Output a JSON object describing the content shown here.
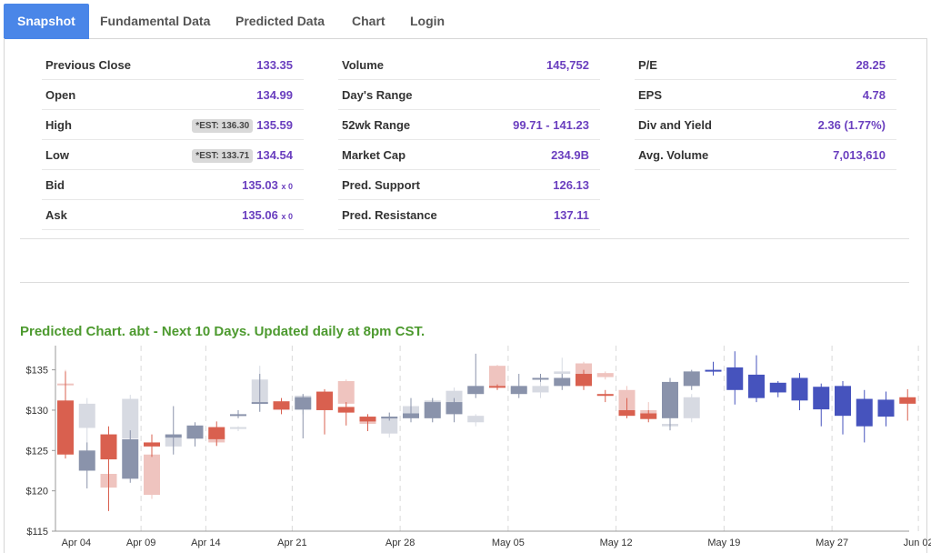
{
  "tabs": [
    {
      "label": "Snapshot",
      "active": true
    },
    {
      "label": "Fundamental Data",
      "active": false
    },
    {
      "label": "Predicted Data",
      "active": false
    },
    {
      "label": "Chart",
      "active": false
    },
    {
      "label": "Login",
      "active": false
    }
  ],
  "quote": {
    "col1": [
      {
        "label": "Previous Close",
        "value": "133.35"
      },
      {
        "label": "Open",
        "value": "134.99"
      },
      {
        "label": "High",
        "value": "135.59",
        "est": "*EST: 136.30"
      },
      {
        "label": "Low",
        "value": "134.54",
        "est": "*EST: 133.71"
      },
      {
        "label": "Bid",
        "value": "135.03",
        "size": "x 0"
      },
      {
        "label": "Ask",
        "value": "135.06",
        "size": "x 0"
      }
    ],
    "col2": [
      {
        "label": "Volume",
        "value": "145,752"
      },
      {
        "label": "Day's Range",
        "value": ""
      },
      {
        "label": "52wk Range",
        "value": "99.71 - 141.23"
      },
      {
        "label": "Market Cap",
        "value": "234.9B"
      },
      {
        "label": "Pred. Support",
        "value": "126.13"
      },
      {
        "label": "Pred. Resistance",
        "value": "137.11"
      }
    ],
    "col3": [
      {
        "label": "P/E",
        "value": "28.25"
      },
      {
        "label": "EPS",
        "value": "4.78"
      },
      {
        "label": "Div and Yield",
        "value": "2.36 (1.77%)"
      },
      {
        "label": "Avg. Volume",
        "value": "7,013,610"
      }
    ]
  },
  "chart_title": "Predicted Chart. abt - Next 10 Days. Updated daily at 8pm CST.",
  "colors": {
    "down": "#d9604f",
    "down_light": "#efc4bf",
    "up": "#8a93ab",
    "up_light": "#d7dae2",
    "predicted": "#4653bd"
  },
  "chart_data": {
    "type": "candlestick",
    "title": "Predicted Chart. abt - Next 10 Days. Updated daily at 8pm CST.",
    "ylim": [
      115,
      138
    ],
    "yticks": [
      {
        "value": 115,
        "label": "$115"
      },
      {
        "value": 120,
        "label": "$120"
      },
      {
        "value": 125,
        "label": "$125"
      },
      {
        "value": 130,
        "label": "$130"
      },
      {
        "value": 135,
        "label": "$135"
      }
    ],
    "xticks": [
      {
        "index": 0.5,
        "label": "Apr 04"
      },
      {
        "index": 3.5,
        "label": "Apr 09"
      },
      {
        "index": 6.5,
        "label": "Apr 14"
      },
      {
        "index": 10.5,
        "label": "Apr 21"
      },
      {
        "index": 15.5,
        "label": "Apr 28"
      },
      {
        "index": 20.5,
        "label": "May 05"
      },
      {
        "index": 25.5,
        "label": "May 12"
      },
      {
        "index": 30.5,
        "label": "May 19"
      },
      {
        "index": 35.5,
        "label": "May 27"
      },
      {
        "index": 39.5,
        "label": "Jun 02"
      }
    ],
    "grid_x_at": [
      3.5,
      6.5,
      10.5,
      15.5,
      20.5,
      25.5,
      30.5,
      35.5,
      39.5
    ],
    "historical": [
      {
        "i": 0,
        "o": 131.2,
        "c": 124.5,
        "h": 134.8,
        "l": 124,
        "dir": "down",
        "shadow": {
          "o": 133.3,
          "c": 133.3,
          "h": 135.0,
          "l": 131.0
        }
      },
      {
        "i": 1,
        "o": 122.5,
        "c": 125.0,
        "h": 126,
        "l": 120.3,
        "dir": "up",
        "shadow": {
          "o": 130.8,
          "c": 127.8,
          "h": 131.5,
          "l": 125.0
        }
      },
      {
        "i": 2,
        "o": 127.0,
        "c": 123.9,
        "h": 128,
        "l": 117.5,
        "dir": "down",
        "shadow": {
          "o": 122.1,
          "c": 120.4,
          "h": 124.0,
          "l": 119.8
        }
      },
      {
        "i": 3,
        "o": 121.5,
        "c": 126.4,
        "h": 127.5,
        "l": 121,
        "dir": "up",
        "shadow": {
          "o": 131.4,
          "c": 126.5,
          "h": 131.9,
          "l": 125.8
        }
      },
      {
        "i": 4,
        "o": 126.0,
        "c": 125.5,
        "h": 127,
        "l": 124.2,
        "dir": "down",
        "shadow": {
          "o": 124.5,
          "c": 119.5,
          "h": 125.5,
          "l": 119.0
        }
      },
      {
        "i": 5,
        "o": 126.6,
        "c": 127.0,
        "h": 130.5,
        "l": 124.5,
        "dir": "up",
        "shadow": {
          "o": 126.8,
          "c": 125.5,
          "h": 127.5,
          "l": 125.0
        }
      },
      {
        "i": 6,
        "o": 126.5,
        "c": 128.1,
        "h": 128.5,
        "l": 125.5,
        "dir": "up",
        "shadow": {
          "o": 126.8,
          "c": 126.4,
          "h": 127.0,
          "l": 126.0
        }
      },
      {
        "i": 7,
        "o": 127.9,
        "c": 126.4,
        "h": 128.6,
        "l": 125.6,
        "dir": "down",
        "shadow": {
          "o": 127.0,
          "c": 126.0,
          "h": 127.5,
          "l": 125.5
        }
      },
      {
        "i": 8,
        "o": 129.4,
        "c": 129.5,
        "h": 130.0,
        "l": 129.0,
        "dir": "up",
        "shadow": {
          "o": 127.9,
          "c": 127.7,
          "h": 128.0,
          "l": 127.4
        }
      },
      {
        "i": 9,
        "o": 130.8,
        "c": 131.0,
        "h": 134.5,
        "l": 129.8,
        "dir": "up",
        "shadow": {
          "o": 133.8,
          "c": 130.8,
          "h": 135.5,
          "l": 129.8
        }
      },
      {
        "i": 10,
        "o": 131.1,
        "c": 130.1,
        "h": 131.5,
        "l": 129.5,
        "dir": "down",
        "shadow": {
          "o": 130.5,
          "c": 130.0,
          "h": 131.0,
          "l": 129.5
        }
      },
      {
        "i": 11,
        "o": 130.1,
        "c": 131.6,
        "h": 132.0,
        "l": 126.5,
        "dir": "up",
        "shadow": {
          "o": 131.8,
          "c": 130.0,
          "h": 132.0,
          "l": 129.5
        }
      },
      {
        "i": 12,
        "o": 132.3,
        "c": 130.0,
        "h": 132.6,
        "l": 127.0,
        "dir": "down",
        "shadow": {
          "o": 131.8,
          "c": 130.5,
          "h": 132.5,
          "l": 129.5
        }
      },
      {
        "i": 13,
        "o": 130.4,
        "c": 129.7,
        "h": 131.0,
        "l": 128.1,
        "dir": "down",
        "shadow": {
          "o": 133.6,
          "c": 130.8,
          "h": 133.8,
          "l": 130.5
        }
      },
      {
        "i": 14,
        "o": 129.2,
        "c": 128.6,
        "h": 129.5,
        "l": 127.4,
        "dir": "down",
        "shadow": {
          "o": 129.0,
          "c": 128.3,
          "h": 129.5,
          "l": 127.8
        }
      },
      {
        "i": 15,
        "o": 129.0,
        "c": 129.2,
        "h": 129.7,
        "l": 128.7,
        "dir": "up",
        "shadow": {
          "o": 129.2,
          "c": 127.1,
          "h": 129.7,
          "l": 126.6
        }
      },
      {
        "i": 16,
        "o": 129.0,
        "c": 129.6,
        "h": 131.5,
        "l": 128.5,
        "dir": "up",
        "shadow": {
          "o": 130.5,
          "c": 129.0,
          "h": 131.2,
          "l": 128.5
        }
      },
      {
        "i": 17,
        "o": 129.0,
        "c": 131.0,
        "h": 131.5,
        "l": 128.5,
        "dir": "up",
        "shadow": {
          "o": 131.2,
          "c": 129.0,
          "h": 131.5,
          "l": 128.5
        }
      },
      {
        "i": 18,
        "o": 129.5,
        "c": 131.0,
        "h": 131.5,
        "l": 128.5,
        "dir": "up",
        "shadow": {
          "o": 132.4,
          "c": 130.6,
          "h": 132.8,
          "l": 130.0
        }
      },
      {
        "i": 19,
        "o": 132.0,
        "c": 133.0,
        "h": 137.0,
        "l": 131.5,
        "dir": "up",
        "shadow": {
          "o": 129.3,
          "c": 128.5,
          "h": 129.5,
          "l": 128.0
        }
      },
      {
        "i": 20,
        "o": 133.0,
        "c": 132.8,
        "h": 133.2,
        "l": 132.5,
        "dir": "down",
        "shadow": {
          "o": 135.5,
          "c": 133.0,
          "h": 135.6,
          "l": 132.5
        }
      },
      {
        "i": 21,
        "o": 132.0,
        "c": 133.0,
        "h": 134.5,
        "l": 131.5,
        "dir": "up",
        "shadow": {
          "o": 132.8,
          "c": 132.3,
          "h": 133.0,
          "l": 132.0
        }
      },
      {
        "i": 22,
        "o": 133.8,
        "c": 134.0,
        "h": 134.5,
        "l": 133.5,
        "dir": "up",
        "shadow": {
          "o": 133.0,
          "c": 132.2,
          "h": 133.5,
          "l": 131.5
        }
      },
      {
        "i": 23,
        "o": 133.0,
        "c": 134.0,
        "h": 134.5,
        "l": 132.5,
        "dir": "up",
        "shadow": {
          "o": 134.8,
          "c": 134.5,
          "h": 136.5,
          "l": 134.0
        }
      },
      {
        "i": 24,
        "o": 134.5,
        "c": 133.0,
        "h": 135.0,
        "l": 132.5,
        "dir": "down",
        "shadow": {
          "o": 135.8,
          "c": 133.0,
          "h": 136.0,
          "l": 132.5
        }
      },
      {
        "i": 25,
        "o": 132.0,
        "c": 131.8,
        "h": 132.5,
        "l": 131.0,
        "dir": "down",
        "shadow": {
          "o": 134.6,
          "c": 134.1,
          "h": 134.8,
          "l": 133.8
        }
      },
      {
        "i": 26,
        "o": 130.0,
        "c": 129.3,
        "h": 131.5,
        "l": 129.0,
        "dir": "down",
        "shadow": {
          "o": 132.5,
          "c": 130.0,
          "h": 133.0,
          "l": 129.5
        }
      },
      {
        "i": 27,
        "o": 129.6,
        "c": 128.9,
        "h": 130.0,
        "l": 128.5,
        "dir": "down",
        "shadow": {
          "o": 130.0,
          "c": 129.5,
          "h": 131.0,
          "l": 129.0
        }
      },
      {
        "i": 28,
        "o": 129.0,
        "c": 133.5,
        "h": 134.0,
        "l": 127.5,
        "dir": "up",
        "shadow": {
          "o": 128.0,
          "c": 128.3,
          "h": 129.0,
          "l": 127.5
        }
      },
      {
        "i": 29,
        "o": 133.0,
        "c": 134.8,
        "h": 135.0,
        "l": 132.5,
        "dir": "up",
        "shadow": {
          "o": 129.0,
          "c": 131.6,
          "h": 132.0,
          "l": 128.5
        }
      }
    ],
    "predicted": [
      {
        "i": 30,
        "o": 135.0,
        "c": 134.8,
        "h": 136.0,
        "l": 134.3
      },
      {
        "i": 31,
        "o": 135.3,
        "c": 132.5,
        "h": 137.3,
        "l": 130.7
      },
      {
        "i": 32,
        "o": 134.4,
        "c": 131.5,
        "h": 136.8,
        "l": 131.0
      },
      {
        "i": 33,
        "o": 133.4,
        "c": 132.2,
        "h": 133.6,
        "l": 131.6
      },
      {
        "i": 34,
        "o": 134.0,
        "c": 131.2,
        "h": 134.6,
        "l": 130.0
      },
      {
        "i": 35,
        "o": 132.9,
        "c": 130.1,
        "h": 133.3,
        "l": 128.0
      },
      {
        "i": 36,
        "o": 133.0,
        "c": 129.3,
        "h": 133.6,
        "l": 127.0
      },
      {
        "i": 37,
        "o": 131.4,
        "c": 128.0,
        "h": 132.5,
        "l": 126.0
      },
      {
        "i": 38,
        "o": 131.3,
        "c": 129.2,
        "h": 132.3,
        "l": 128.0
      },
      {
        "i": 39,
        "o": 131.6,
        "c": 130.8,
        "h": 132.6,
        "l": 128.7
      }
    ]
  }
}
